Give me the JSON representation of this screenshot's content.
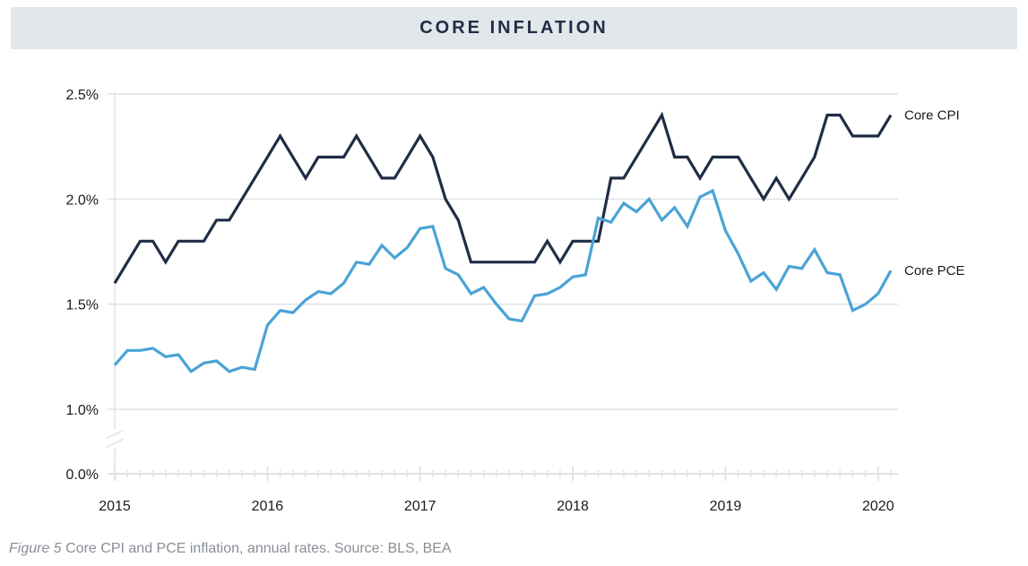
{
  "title": "CORE INFLATION",
  "caption": {
    "figure": "Figure 5",
    "text": " Core CPI and PCE inflation, annual rates. Source: BLS, BEA"
  },
  "colors": {
    "cpi": "#1f2d45",
    "pce": "#4aa3d6",
    "grid": "#dde3e7",
    "title_bg": "#e1e7eb"
  },
  "chart_data": {
    "type": "line",
    "title": "CORE INFLATION",
    "xlabel": "",
    "ylabel": "",
    "x_ticks": [
      "2015",
      "2016",
      "2017",
      "2018",
      "2019",
      "2020"
    ],
    "y_ticks": [
      "0.0%",
      "1.0%",
      "1.5%",
      "2.0%",
      "2.5%"
    ],
    "y_axis_break": "between 0.0% and 1.0%",
    "ylim": [
      1.0,
      2.5
    ],
    "xlim": [
      "2015-01",
      "2020-02"
    ],
    "grid": true,
    "legend": "inline labels at right end of each series",
    "x": [
      "2015-01",
      "2015-02",
      "2015-03",
      "2015-04",
      "2015-05",
      "2015-06",
      "2015-07",
      "2015-08",
      "2015-09",
      "2015-10",
      "2015-11",
      "2015-12",
      "2016-01",
      "2016-02",
      "2016-03",
      "2016-04",
      "2016-05",
      "2016-06",
      "2016-07",
      "2016-08",
      "2016-09",
      "2016-10",
      "2016-11",
      "2016-12",
      "2017-01",
      "2017-02",
      "2017-03",
      "2017-04",
      "2017-05",
      "2017-06",
      "2017-07",
      "2017-08",
      "2017-09",
      "2017-10",
      "2017-11",
      "2017-12",
      "2018-01",
      "2018-02",
      "2018-03",
      "2018-04",
      "2018-05",
      "2018-06",
      "2018-07",
      "2018-08",
      "2018-09",
      "2018-10",
      "2018-11",
      "2018-12",
      "2019-01",
      "2019-02",
      "2019-03",
      "2019-04",
      "2019-05",
      "2019-06",
      "2019-07",
      "2019-08",
      "2019-09",
      "2019-10",
      "2019-11",
      "2019-12",
      "2020-01",
      "2020-02"
    ],
    "series": [
      {
        "name": "Core CPI",
        "color": "#1f2d45",
        "values": [
          1.6,
          1.7,
          1.8,
          1.8,
          1.7,
          1.8,
          1.8,
          1.8,
          1.9,
          1.9,
          2.0,
          2.1,
          2.2,
          2.3,
          2.2,
          2.1,
          2.2,
          2.2,
          2.2,
          2.3,
          2.2,
          2.1,
          2.1,
          2.2,
          2.3,
          2.2,
          2.0,
          1.9,
          1.7,
          1.7,
          1.7,
          1.7,
          1.7,
          1.7,
          1.8,
          1.7,
          1.8,
          1.8,
          1.8,
          2.1,
          2.1,
          2.2,
          2.3,
          2.4,
          2.2,
          2.2,
          2.1,
          2.2,
          2.2,
          2.2,
          2.1,
          2.0,
          2.1,
          2.0,
          2.1,
          2.2,
          2.4,
          2.4,
          2.3,
          2.3,
          2.3,
          2.4
        ]
      },
      {
        "name": "Core PCE",
        "color": "#4aa3d6",
        "values": [
          1.21,
          1.28,
          1.28,
          1.29,
          1.25,
          1.26,
          1.18,
          1.22,
          1.23,
          1.18,
          1.2,
          1.19,
          1.4,
          1.47,
          1.46,
          1.52,
          1.56,
          1.55,
          1.6,
          1.7,
          1.69,
          1.78,
          1.72,
          1.77,
          1.86,
          1.87,
          1.67,
          1.64,
          1.55,
          1.58,
          1.5,
          1.43,
          1.42,
          1.54,
          1.55,
          1.58,
          1.63,
          1.64,
          1.91,
          1.89,
          1.98,
          1.94,
          2.0,
          1.9,
          1.96,
          1.87,
          2.01,
          2.04,
          1.85,
          1.74,
          1.61,
          1.65,
          1.57,
          1.68,
          1.67,
          1.76,
          1.65,
          1.64,
          1.47,
          1.5,
          1.55,
          1.66
        ]
      }
    ]
  }
}
